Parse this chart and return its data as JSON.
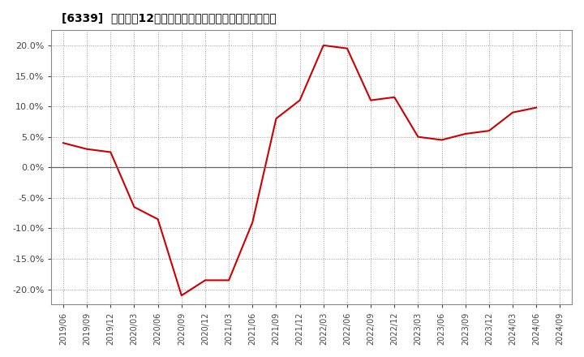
{
  "title": "[6339]  売上高の12か月移動合計の対前年同期増減率の推移",
  "line_color": "#cc0000",
  "background_color": "#ffffff",
  "plot_bg_color": "#ffffff",
  "grid_color": "#999999",
  "ylim": [
    -0.225,
    0.225
  ],
  "yticks": [
    -0.2,
    -0.15,
    -0.1,
    -0.05,
    0.0,
    0.05,
    0.1,
    0.15,
    0.2
  ],
  "dates": [
    "2019/06",
    "2019/09",
    "2019/12",
    "2020/03",
    "2020/06",
    "2020/09",
    "2020/12",
    "2021/03",
    "2021/06",
    "2021/09",
    "2021/12",
    "2022/03",
    "2022/06",
    "2022/09",
    "2022/12",
    "2023/03",
    "2023/06",
    "2023/09",
    "2023/12",
    "2024/03",
    "2024/06",
    "2024/09"
  ],
  "values": [
    0.04,
    0.03,
    0.025,
    -0.065,
    -0.085,
    -0.21,
    -0.185,
    -0.185,
    -0.09,
    0.08,
    0.11,
    0.2,
    0.195,
    0.11,
    0.115,
    0.05,
    0.045,
    0.055,
    0.06,
    0.09,
    0.098,
    null
  ]
}
